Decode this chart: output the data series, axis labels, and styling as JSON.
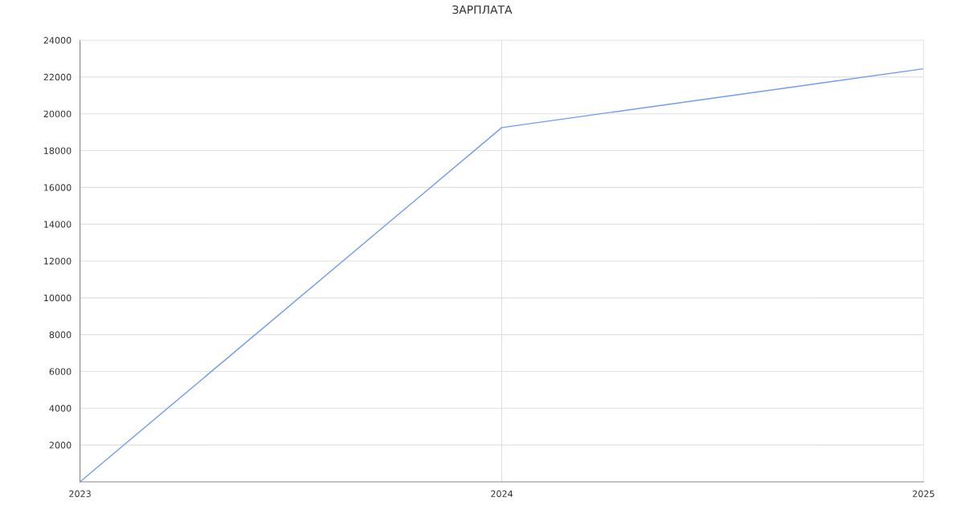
{
  "chart_data": {
    "type": "line",
    "title": "ЗАРПЛАТА",
    "x": [
      2023,
      2024,
      2025
    ],
    "series": [
      {
        "color": "#6f9cf4",
        "values": [
          0,
          19250,
          22450
        ]
      }
    ],
    "xlim": [
      2023,
      2025
    ],
    "xticks": [
      2023,
      2024,
      2025
    ],
    "ylim": [
      0,
      24000
    ],
    "yticks": [
      2000,
      4000,
      6000,
      8000,
      10000,
      12000,
      14000,
      16000,
      18000,
      20000,
      22000,
      24000
    ],
    "grid": true,
    "marker": "none",
    "line_style": "solid"
  }
}
